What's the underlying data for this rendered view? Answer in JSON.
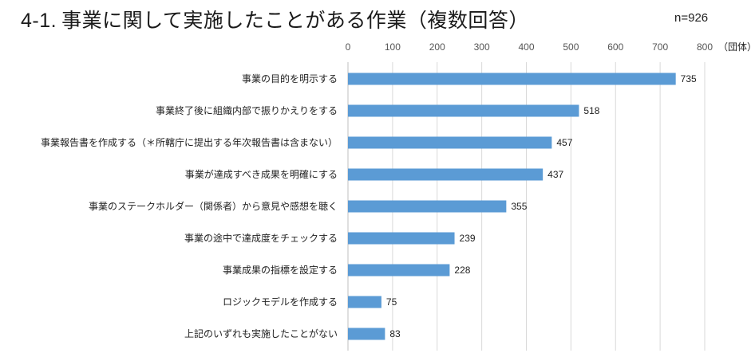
{
  "header": {
    "number": "4-1.",
    "title": "事業に関して実施したことがある作業（複数回答）",
    "sample": "n=926"
  },
  "chart_data": {
    "type": "bar",
    "orientation": "horizontal",
    "xlim": [
      0,
      800
    ],
    "ticks": [
      0,
      100,
      200,
      300,
      400,
      500,
      600,
      700,
      800
    ],
    "unit": "（団体）",
    "grid": true,
    "bar_color": "#5b9bd5",
    "categories": [
      "事業の目的を明示する",
      "事業終了後に組織内部で振りかえりをする",
      "事業報告書を作成する（＊所轄庁に提出する年次報告書は含まない）",
      "事業が達成すべき成果を明確にする",
      "事業のステークホルダー（関係者）から意見や感想を聴く",
      "事業の途中で達成度をチェックする",
      "事業成果の指標を設定する",
      "ロジックモデルを作成する",
      "上記のいずれも実施したことがない"
    ],
    "values": [
      735,
      518,
      457,
      437,
      355,
      239,
      228,
      75,
      83
    ]
  }
}
